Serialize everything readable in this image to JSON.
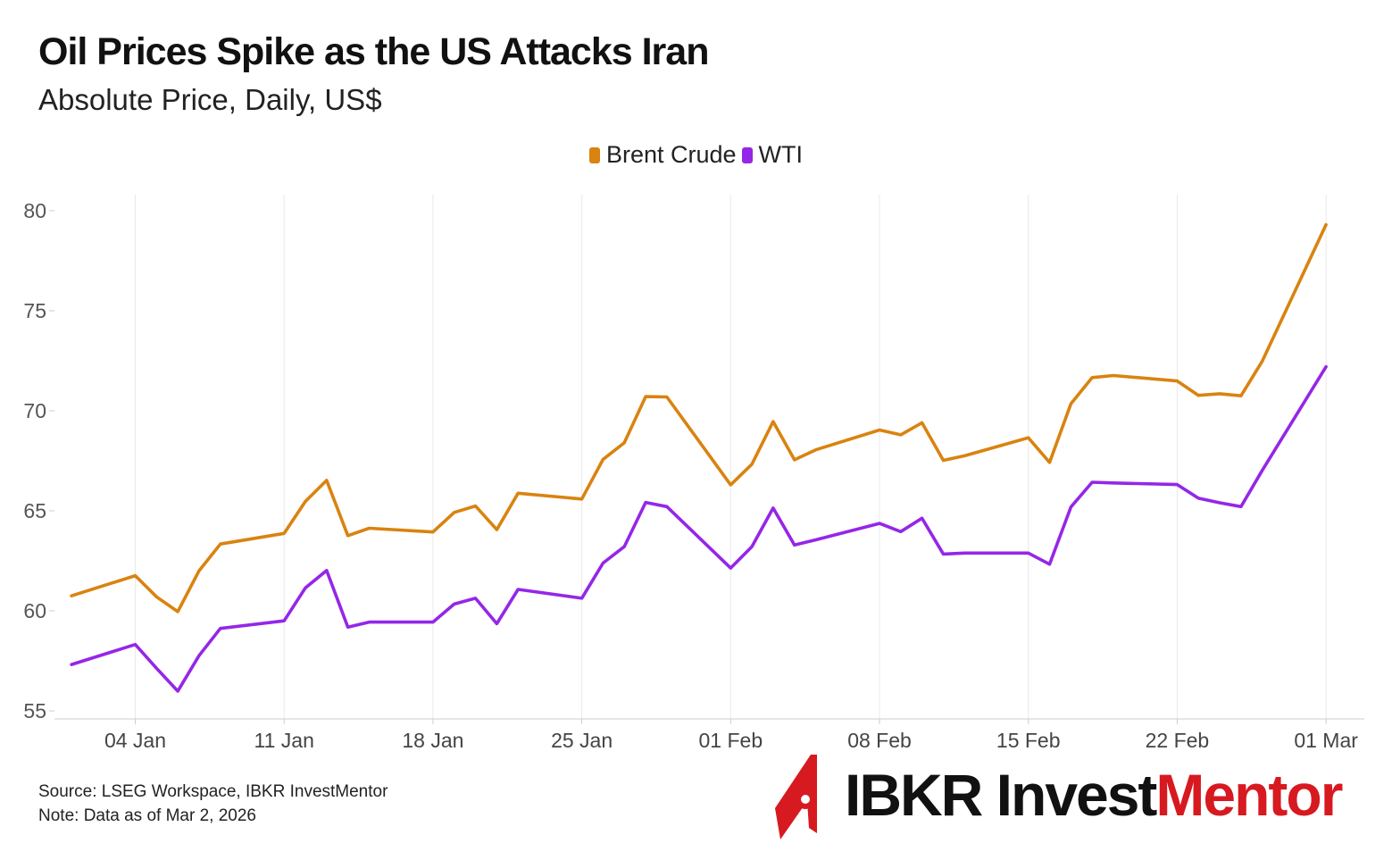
{
  "title": "Oil Prices Spike as the US Attacks Iran",
  "subtitle": "Absolute Price, Daily, US$",
  "legend": [
    {
      "label": "Brent Crude",
      "color": "#d98310"
    },
    {
      "label": "WTI",
      "color": "#9526e8"
    }
  ],
  "footer": {
    "source": "Source: LSEG Workspace, IBKR InvestMentor",
    "note": "Note: Data as of Mar 2, 2026"
  },
  "logo": {
    "part1": "IBKR Invest",
    "part2": "Mentor",
    "color_dark": "#111111",
    "color_red": "#d71920"
  },
  "chart_data": {
    "type": "line",
    "title": "Oil Prices Spike as the US Attacks Iran",
    "subtitle": "Absolute Price, Daily, US$",
    "xlabel": "",
    "ylabel": "",
    "x_range_days": [
      -0.8,
      60.8
    ],
    "ylim": [
      54.6,
      80.8
    ],
    "y_ticks": [
      55,
      60,
      65,
      70,
      75,
      80
    ],
    "x_ticks": [
      {
        "day": 3,
        "label": "04 Jan"
      },
      {
        "day": 10,
        "label": "11 Jan"
      },
      {
        "day": 17,
        "label": "18 Jan"
      },
      {
        "day": 24,
        "label": "25 Jan"
      },
      {
        "day": 31,
        "label": "01 Feb"
      },
      {
        "day": 38,
        "label": "08 Feb"
      },
      {
        "day": 45,
        "label": "15 Feb"
      },
      {
        "day": 52,
        "label": "22 Feb"
      },
      {
        "day": 59,
        "label": "01 Mar"
      }
    ],
    "grid": "vertical",
    "legend_position": "top-center",
    "x_days": [
      0,
      3,
      4,
      5,
      6,
      7,
      10,
      11,
      12,
      13,
      14,
      17,
      18,
      19,
      20,
      21,
      24,
      25,
      26,
      27,
      28,
      31,
      32,
      33,
      34,
      35,
      38,
      39,
      40,
      41,
      42,
      45,
      46,
      47,
      48,
      49,
      52,
      53,
      54,
      55,
      56,
      59
    ],
    "series": [
      {
        "name": "Brent Crude",
        "color": "#d98310",
        "values": [
          60.75,
          61.76,
          60.7,
          59.96,
          62,
          63.34,
          63.87,
          65.47,
          66.52,
          63.76,
          64.13,
          63.94,
          64.92,
          65.24,
          64.06,
          65.88,
          65.59,
          67.57,
          68.4,
          70.71,
          70.69,
          66.3,
          67.33,
          69.46,
          67.55,
          68.05,
          69.04,
          68.8,
          69.4,
          67.52,
          67.75,
          68.65,
          67.42,
          70.35,
          71.66,
          71.76,
          71.49,
          70.77,
          70.85,
          70.75,
          72.48,
          79.3
        ]
      },
      {
        "name": "WTI",
        "color": "#9526e8",
        "values": [
          57.32,
          58.32,
          57.13,
          55.99,
          57.76,
          59.12,
          59.5,
          61.15,
          62.02,
          59.19,
          59.44,
          59.44,
          60.34,
          60.63,
          59.36,
          61.07,
          60.63,
          62.39,
          63.21,
          65.42,
          65.21,
          62.14,
          63.21,
          65.14,
          63.29,
          63.55,
          64.37,
          63.96,
          64.63,
          62.84,
          62.89,
          62.89,
          62.33,
          65.19,
          66.43,
          66.39,
          66.31,
          65.63,
          65.4,
          65.21,
          67.02,
          72.2
        ]
      }
    ]
  }
}
